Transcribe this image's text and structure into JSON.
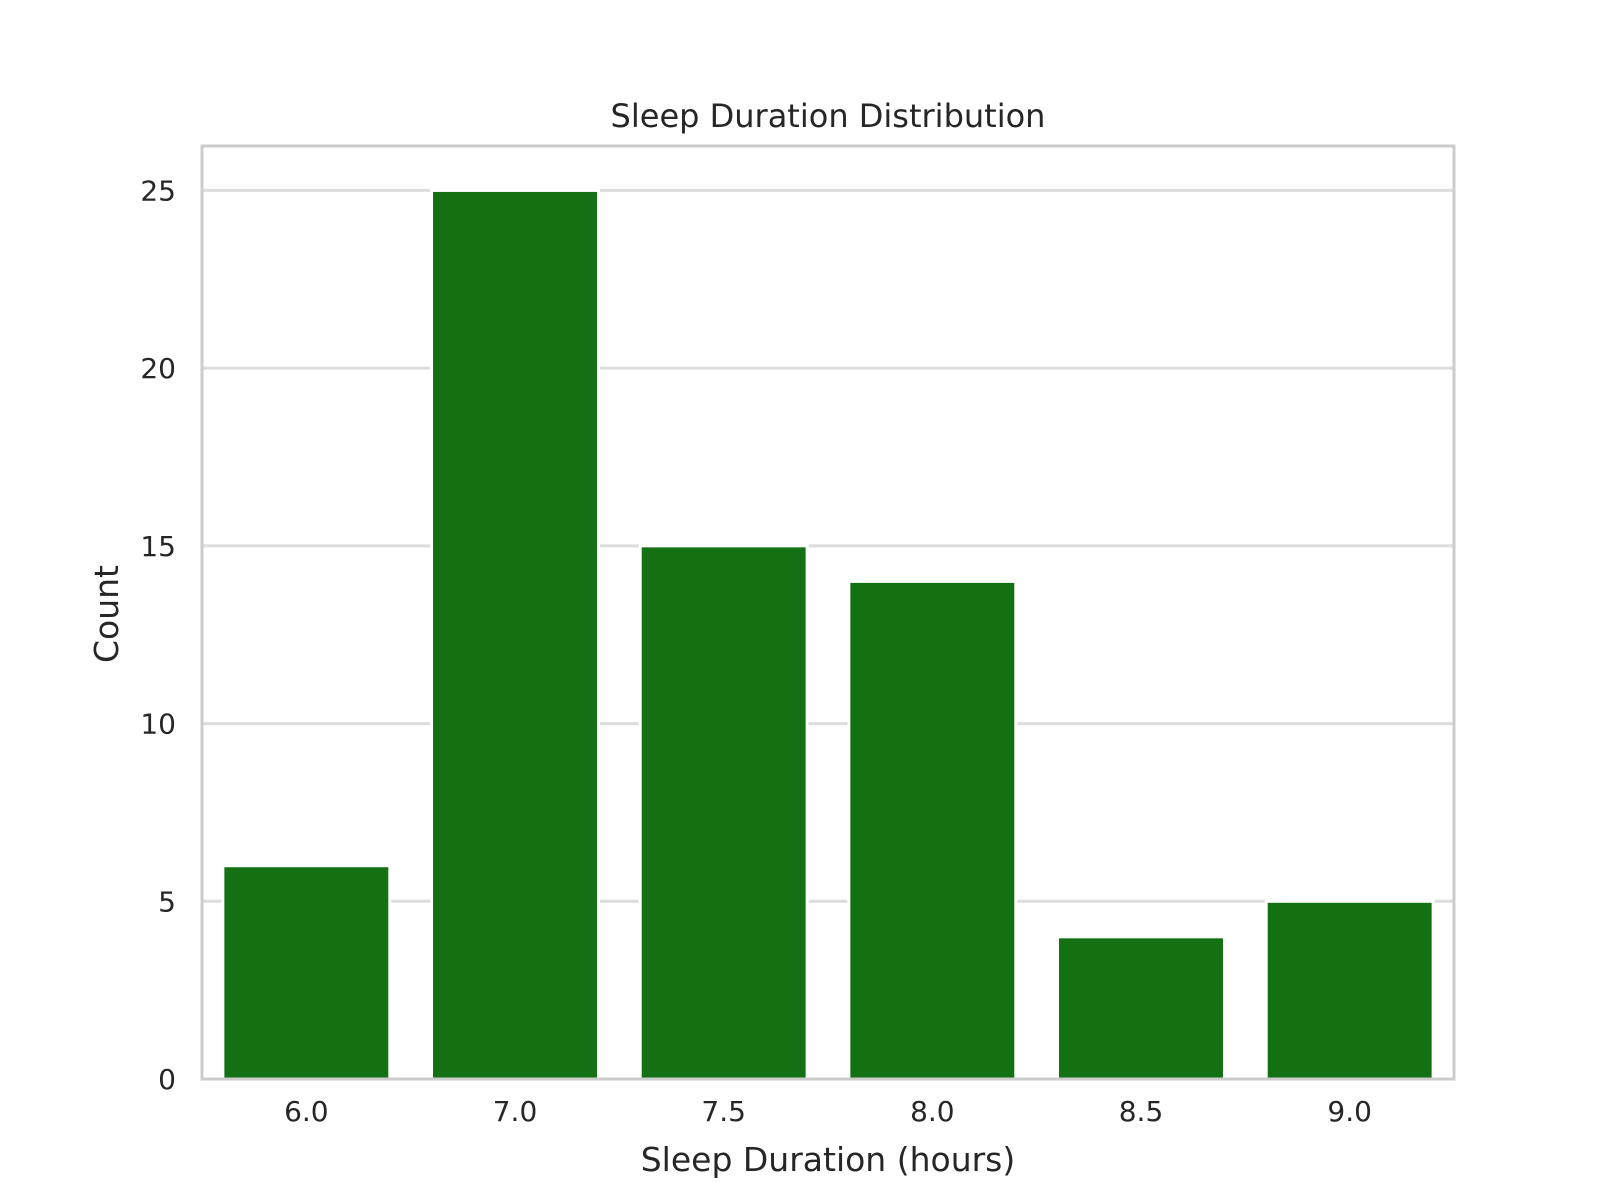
{
  "chart_data": {
    "type": "bar",
    "title": "Sleep Duration Distribution",
    "xlabel": "Sleep Duration (hours)",
    "ylabel": "Count",
    "categories": [
      "6.0",
      "7.0",
      "7.5",
      "8.0",
      "8.5",
      "9.0"
    ],
    "values": [
      6,
      25,
      15,
      14,
      4,
      5
    ],
    "ylim": [
      0,
      26.25
    ],
    "yticks": [
      0,
      5,
      10,
      15,
      20,
      25
    ],
    "grid": true,
    "bar_color": "#137013"
  }
}
